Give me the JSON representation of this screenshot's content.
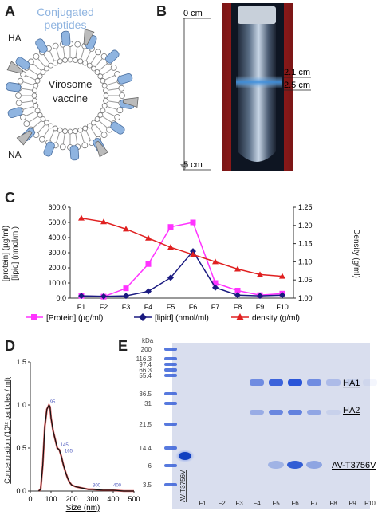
{
  "panels": {
    "A": {
      "letter": "A",
      "labels": {
        "conjugated_peptides": "Conjugated\npeptides",
        "ha": "HA",
        "na": "NA",
        "virosome_vaccine": "Virosome\nvaccine"
      }
    },
    "B": {
      "letter": "B",
      "labels": {
        "top": "0 cm",
        "band_top": "2.1 cm",
        "band_bottom": "2.5 cm",
        "bottom": "5 cm"
      }
    },
    "C": {
      "letter": "C",
      "left_ylabel": "[protein]  (µg/ml)\n[lipid] (nmol/ml)",
      "right_ylabel": "Density (g/ml)",
      "legend": {
        "protein": "[Protein]  (µg/ml)",
        "lipid": "[lipid] (nmol/ml)",
        "density": "density (g/ml)"
      }
    },
    "D": {
      "letter": "D",
      "ylabel": "Concentration (10¹² particles / ml)",
      "xlabel": "Size (nm)",
      "peak_labels": [
        "95",
        "145",
        "165",
        "300",
        "400"
      ]
    },
    "E": {
      "letter": "E",
      "kda_label": "kDa",
      "markers": [
        "200",
        "116.3",
        "97.4",
        "66.3",
        "55.4",
        "36.5",
        "31",
        "21.5",
        "14.4",
        "6",
        "3.5"
      ],
      "lane_labels": [
        "AV-T3756V",
        "F1",
        "F2",
        "F3",
        "F4",
        "F5",
        "F6",
        "F7",
        "F8",
        "F9",
        "F10"
      ],
      "band_labels": [
        "HA1",
        "HA2",
        "AV-T3756V"
      ]
    }
  },
  "chart_data": [
    {
      "type": "line",
      "categories": [
        "F1",
        "F2",
        "F3",
        "F4",
        "F5",
        "F6",
        "F7",
        "F8",
        "F9",
        "F10"
      ],
      "ylim": [
        0,
        600
      ],
      "y2lim": [
        1.0,
        1.25
      ],
      "yticks": [
        "0.0",
        "100.0",
        "200.0",
        "300.0",
        "400.0",
        "500.0",
        "600.0"
      ],
      "y2ticks": [
        "1.00",
        "1.05",
        "1.10",
        "1.15",
        "1.20",
        "1.25"
      ],
      "series": [
        {
          "name": "[Protein]  (µg/ml)",
          "axis": "left",
          "color": "#ff33ff",
          "marker": "square",
          "values": [
            15,
            10,
            65,
            225,
            470,
            500,
            100,
            50,
            20,
            30
          ]
        },
        {
          "name": "[lipid] (nmol/ml)",
          "axis": "left",
          "color": "#1a1a80",
          "marker": "diamond",
          "values": [
            15,
            12,
            15,
            45,
            135,
            310,
            70,
            20,
            15,
            20
          ]
        },
        {
          "name": "density (g/ml)",
          "axis": "right",
          "color": "#e02020",
          "marker": "triangle",
          "values": [
            1.22,
            1.21,
            1.19,
            1.165,
            1.14,
            1.12,
            1.1,
            1.08,
            1.065,
            1.06
          ]
        }
      ]
    },
    {
      "type": "line",
      "xlim": [
        0,
        500
      ],
      "ylim": [
        0,
        1.5
      ],
      "xticks": [
        "0",
        "100",
        "200",
        "300",
        "400",
        "500"
      ],
      "yticks": [
        "0.0",
        "0.5",
        "1.0",
        "1.5"
      ],
      "x": [
        40,
        50,
        60,
        70,
        80,
        90,
        95,
        100,
        110,
        120,
        130,
        140,
        150,
        160,
        170,
        180,
        190,
        200,
        220,
        240,
        260,
        280,
        300,
        350,
        400,
        450,
        500
      ],
      "y": [
        0.0,
        0.02,
        0.3,
        0.75,
        0.95,
        1.0,
        0.98,
        0.85,
        0.7,
        0.6,
        0.5,
        0.48,
        0.4,
        0.3,
        0.22,
        0.15,
        0.1,
        0.07,
        0.05,
        0.04,
        0.03,
        0.02,
        0.02,
        0.01,
        0.01,
        0.0,
        0.0
      ]
    }
  ]
}
